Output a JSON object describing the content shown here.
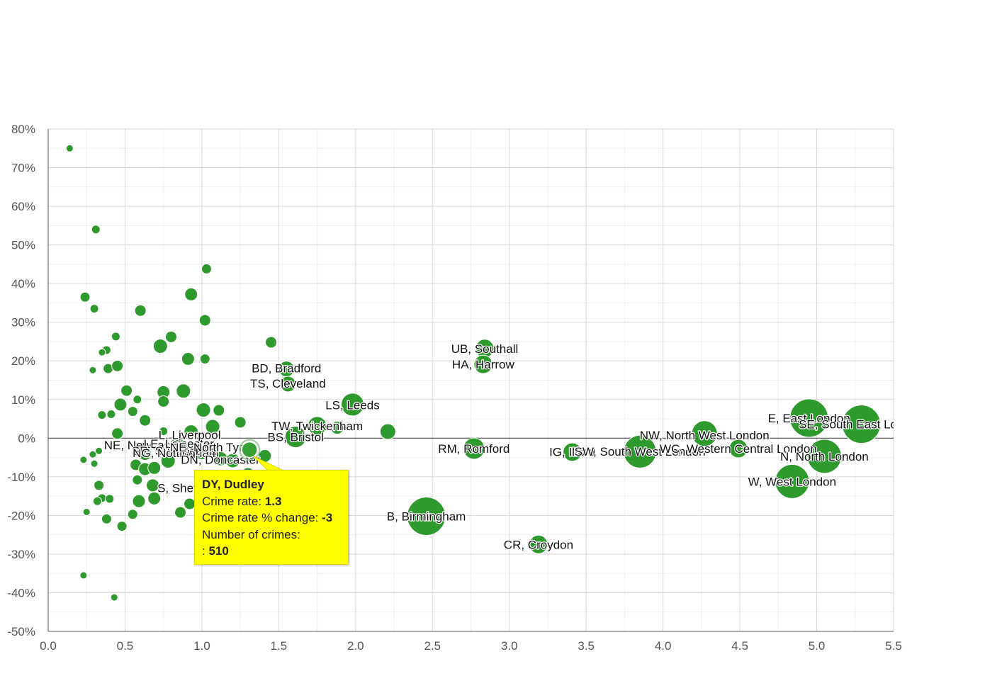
{
  "chart_data": {
    "type": "scatter",
    "title": "",
    "xlabel": "",
    "ylabel": "",
    "xlim": [
      0,
      5.5
    ],
    "ylim": [
      -50,
      80
    ],
    "x_ticks": [
      "0.0",
      "0.5",
      "1.0",
      "1.5",
      "2.0",
      "2.5",
      "3.0",
      "3.5",
      "4.0",
      "4.5",
      "5.0",
      "5.5"
    ],
    "y_ticks": [
      "80%",
      "70%",
      "60%",
      "50%",
      "40%",
      "30%",
      "20%",
      "10%",
      "0%",
      "-10%",
      "-20%",
      "-30%",
      "-40%",
      "-50%"
    ],
    "bubble_color": "#2e9a2e",
    "points": [
      {
        "x": 0.14,
        "y": 75,
        "r": 5
      },
      {
        "x": 0.31,
        "y": 54,
        "r": 6
      },
      {
        "x": 0.24,
        "y": 36.5,
        "r": 7
      },
      {
        "x": 0.3,
        "y": 33.5,
        "r": 6
      },
      {
        "x": 0.44,
        "y": 26.3,
        "r": 6
      },
      {
        "x": 0.38,
        "y": 22.8,
        "r": 6
      },
      {
        "x": 0.35,
        "y": 22.2,
        "r": 5
      },
      {
        "x": 0.29,
        "y": 17.6,
        "r": 5
      },
      {
        "x": 0.39,
        "y": 18,
        "r": 7
      },
      {
        "x": 0.45,
        "y": 18.7,
        "r": 8
      },
      {
        "x": 0.51,
        "y": 12.3,
        "r": 8
      },
      {
        "x": 0.58,
        "y": 10,
        "r": 6
      },
      {
        "x": 0.47,
        "y": 8.7,
        "r": 9
      },
      {
        "x": 0.55,
        "y": 6.9,
        "r": 7
      },
      {
        "x": 0.41,
        "y": 6.2,
        "r": 6
      },
      {
        "x": 0.35,
        "y": 6,
        "r": 6
      },
      {
        "x": 0.63,
        "y": 4.6,
        "r": 8
      },
      {
        "x": 0.45,
        "y": 1.2,
        "r": 8
      },
      {
        "x": 0.75,
        "y": 1.8,
        "r": 6
      },
      {
        "x": 0.6,
        "y": 33,
        "r": 8
      },
      {
        "x": 0.73,
        "y": 23.8,
        "r": 10
      },
      {
        "x": 0.8,
        "y": 26.2,
        "r": 8
      },
      {
        "x": 0.75,
        "y": 11.9,
        "r": 9
      },
      {
        "x": 0.75,
        "y": 9.5,
        "r": 8
      },
      {
        "x": 0.88,
        "y": 12.2,
        "r": 10
      },
      {
        "x": 0.91,
        "y": 20.5,
        "r": 9
      },
      {
        "x": 0.93,
        "y": 37.2,
        "r": 9
      },
      {
        "x": 1.02,
        "y": 30.5,
        "r": 8
      },
      {
        "x": 1.03,
        "y": 43.8,
        "r": 7
      },
      {
        "x": 1.02,
        "y": 20.5,
        "r": 7
      },
      {
        "x": 1.01,
        "y": 7.3,
        "r": 10
      },
      {
        "x": 1.11,
        "y": 7.2,
        "r": 8
      },
      {
        "x": 1.07,
        "y": 3,
        "r": 10
      },
      {
        "x": 0.93,
        "y": 1.6,
        "r": 10
      },
      {
        "x": 1.25,
        "y": 4.1,
        "r": 8
      },
      {
        "x": 1.45,
        "y": 24.8,
        "r": 8
      },
      {
        "x": 0.33,
        "y": -3.3,
        "r": 5
      },
      {
        "x": 0.29,
        "y": -4.2,
        "r": 5
      },
      {
        "x": 0.23,
        "y": -5.6,
        "r": 5
      },
      {
        "x": 0.3,
        "y": -6.6,
        "r": 5
      },
      {
        "x": 0.58,
        "y": -2.5,
        "r": 7
      },
      {
        "x": 0.61,
        "y": -3.5,
        "r": 8
      },
      {
        "x": 0.63,
        "y": -4.1,
        "r": 9
      },
      {
        "x": 0.84,
        "y": -1.9,
        "r": 11
      },
      {
        "x": 0.86,
        "y": -3.2,
        "r": 9
      },
      {
        "x": 0.89,
        "y": -2.6,
        "r": 7
      },
      {
        "x": 0.57,
        "y": -6.9,
        "r": 8
      },
      {
        "x": 0.63,
        "y": -8,
        "r": 9
      },
      {
        "x": 0.69,
        "y": -7.7,
        "r": 9
      },
      {
        "x": 0.78,
        "y": -5.9,
        "r": 10
      },
      {
        "x": 1.0,
        "y": -4.1,
        "r": 8
      },
      {
        "x": 1.12,
        "y": -5.3,
        "r": 10
      },
      {
        "x": 1.2,
        "y": -5.8,
        "r": 10
      },
      {
        "x": 1.31,
        "y": -3,
        "r": 11
      },
      {
        "x": 1.41,
        "y": -4.6,
        "r": 9
      },
      {
        "x": 1.3,
        "y": -9.3,
        "r": 9
      },
      {
        "x": 0.58,
        "y": -10.8,
        "r": 7
      },
      {
        "x": 0.68,
        "y": -12.2,
        "r": 9
      },
      {
        "x": 0.33,
        "y": -12.2,
        "r": 7
      },
      {
        "x": 0.35,
        "y": -15.5,
        "r": 6
      },
      {
        "x": 0.4,
        "y": -15.7,
        "r": 6
      },
      {
        "x": 0.32,
        "y": -16.3,
        "r": 6
      },
      {
        "x": 0.59,
        "y": -16.3,
        "r": 9
      },
      {
        "x": 0.69,
        "y": -15.6,
        "r": 9
      },
      {
        "x": 0.25,
        "y": -19.1,
        "r": 5
      },
      {
        "x": 0.55,
        "y": -19.7,
        "r": 7
      },
      {
        "x": 0.38,
        "y": -20.9,
        "r": 7
      },
      {
        "x": 0.48,
        "y": -22.8,
        "r": 7
      },
      {
        "x": 0.86,
        "y": -19.2,
        "r": 8
      },
      {
        "x": 0.92,
        "y": -17,
        "r": 8
      },
      {
        "x": 0.23,
        "y": -35.5,
        "r": 5
      },
      {
        "x": 0.43,
        "y": -41.2,
        "r": 5
      },
      {
        "x": 1.55,
        "y": 17.9,
        "r": 11
      },
      {
        "x": 1.56,
        "y": 14,
        "r": 11
      },
      {
        "x": 1.75,
        "y": 3.2,
        "r": 13
      },
      {
        "x": 1.88,
        "y": 2.7,
        "r": 9
      },
      {
        "x": 1.61,
        "y": 0.3,
        "r": 15
      },
      {
        "x": 1.98,
        "y": 8.7,
        "r": 16
      },
      {
        "x": 2.21,
        "y": 1.7,
        "r": 11
      },
      {
        "x": 2.46,
        "y": -20.2,
        "r": 27
      },
      {
        "x": 2.84,
        "y": 23.2,
        "r": 13
      },
      {
        "x": 2.83,
        "y": 19.1,
        "r": 13
      },
      {
        "x": 2.77,
        "y": -2.7,
        "r": 15
      },
      {
        "x": 3.19,
        "y": -27.5,
        "r": 13
      },
      {
        "x": 3.41,
        "y": -3.6,
        "r": 13
      },
      {
        "x": 3.85,
        "y": -3.5,
        "r": 23
      },
      {
        "x": 4.27,
        "y": 1.2,
        "r": 18
      },
      {
        "x": 4.49,
        "y": -2.7,
        "r": 13
      },
      {
        "x": 4.95,
        "y": 5.2,
        "r": 27
      },
      {
        "x": 5.05,
        "y": -4.7,
        "r": 24
      },
      {
        "x": 5.29,
        "y": 3.6,
        "r": 27
      },
      {
        "x": 4.84,
        "y": -11.2,
        "r": 24
      }
    ],
    "labels": [
      {
        "text": "UB, Southall",
        "x": 2.84,
        "y": 23.2
      },
      {
        "text": "HA, Harrow",
        "x": 2.83,
        "y": 19.1
      },
      {
        "text": "BD, Bradford",
        "x": 1.55,
        "y": 18.1
      },
      {
        "text": "TS, Cleveland",
        "x": 1.56,
        "y": 14.2
      },
      {
        "text": "LS, Leeds",
        "x": 1.98,
        "y": 8.6
      },
      {
        "text": "TW, Twickenham",
        "x": 1.75,
        "y": 3.2
      },
      {
        "text": "BS, Bristol",
        "x": 1.61,
        "y": 0.3
      },
      {
        "text": "L, Liverpool",
        "x": 0.92,
        "y": 0.9
      },
      {
        "text": "NE, Newcastle",
        "x": 0.62,
        "y": -1.8
      },
      {
        "text": "LE, Leicester",
        "x": 0.85,
        "y": -1.4
      },
      {
        "text": "SR, Sunderland",
        "x": 0.82,
        "y": -3.2
      },
      {
        "text": "NG, Nottingham",
        "x": 0.83,
        "y": -3.8
      },
      {
        "text": "NE, North Tyne",
        "x": 1.06,
        "y": -2.3
      },
      {
        "text": "DN, Doncaster",
        "x": 1.12,
        "y": -5.5
      },
      {
        "text": "S, Sheffield",
        "x": 0.91,
        "y": -12.9
      },
      {
        "text": "B, Birmingham",
        "x": 2.46,
        "y": -20.2
      },
      {
        "text": "RM, Romford",
        "x": 2.77,
        "y": -2.7
      },
      {
        "text": "CR, Croydon",
        "x": 3.19,
        "y": -27.5
      },
      {
        "text": "IG, Ilford",
        "x": 3.41,
        "y": -3.5
      },
      {
        "text": "SW, South West London",
        "x": 3.85,
        "y": -3.4
      },
      {
        "text": "NW, North West London",
        "x": 4.27,
        "y": 0.8
      },
      {
        "text": "WC, Western Central London",
        "x": 4.49,
        "y": -2.7
      },
      {
        "text": "E, East London",
        "x": 4.95,
        "y": 5.2
      },
      {
        "text": "SE, South East London",
        "x": 5.29,
        "y": 3.6
      },
      {
        "text": "N, North London",
        "x": 5.05,
        "y": -4.7
      },
      {
        "text": "W, West London",
        "x": 4.84,
        "y": -11.2
      }
    ],
    "highlight": {
      "x": 1.31,
      "y": -3,
      "r": 11
    }
  },
  "tooltip": {
    "title": "DY, Dudley",
    "rate_label": "Crime rate:",
    "rate_value": "1.3",
    "change_label": "Crime rate % change:",
    "change_value": "-3",
    "crimes_label": "Number of crimes:",
    "crimes_prefix": ":",
    "crimes_value": "510"
  }
}
